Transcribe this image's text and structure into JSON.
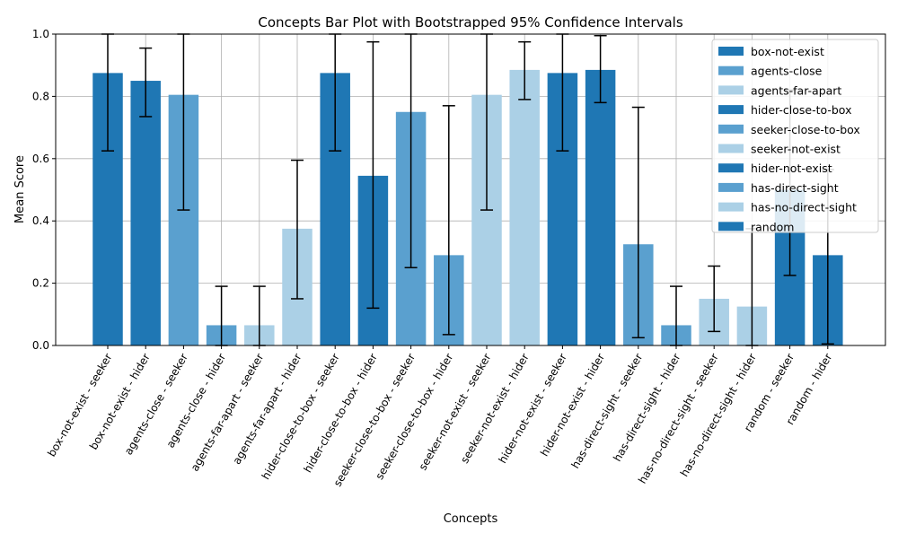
{
  "chart_data": {
    "type": "bar",
    "title": "Concepts Bar Plot with Bootstrapped 95% Confidence Intervals",
    "xlabel": "Concepts",
    "ylabel": "Mean Score",
    "ylim": [
      0,
      1.0
    ],
    "yticks": [
      "0.0",
      "0.2",
      "0.4",
      "0.6",
      "0.8",
      "1.0"
    ],
    "grid": true,
    "legend_position": "top-right",
    "colors": [
      "#1f77b4",
      "#5aa0cf",
      "#abd0e6"
    ],
    "categories": [
      "box-not-exist - seeker",
      "box-not-exist - hider",
      "agents-close - seeker",
      "agents-close - hider",
      "agents-far-apart - seeker",
      "agents-far-apart - hider",
      "hider-close-to-box - seeker",
      "hider-close-to-box - hider",
      "seeker-close-to-box - seeker",
      "seeker-close-to-box - hider",
      "seeker-not-exist - seeker",
      "seeker-not-exist - hider",
      "hider-not-exist - seeker",
      "hider-not-exist - hider",
      "has-direct-sight - seeker",
      "has-direct-sight - hider",
      "has-no-direct-sight - seeker",
      "has-no-direct-sight - hider",
      "random - seeker",
      "random - hider"
    ],
    "values": [
      0.875,
      0.85,
      0.805,
      0.065,
      0.065,
      0.375,
      0.875,
      0.545,
      0.75,
      0.29,
      0.805,
      0.885,
      0.875,
      0.885,
      0.325,
      0.065,
      0.15,
      0.125,
      0.5,
      0.29
    ],
    "ci_low": [
      0.625,
      0.735,
      0.435,
      0.0,
      0.0,
      0.15,
      0.625,
      0.12,
      0.25,
      0.035,
      0.435,
      0.79,
      0.625,
      0.78,
      0.025,
      0.0,
      0.045,
      0.0,
      0.225,
      0.005
    ],
    "ci_high": [
      1.0,
      0.955,
      1.0,
      0.19,
      0.19,
      0.595,
      1.0,
      0.975,
      1.0,
      0.77,
      1.0,
      0.975,
      1.0,
      0.995,
      0.765,
      0.19,
      0.255,
      0.375,
      0.82,
      0.565
    ],
    "color_index": [
      0,
      0,
      1,
      1,
      2,
      2,
      0,
      0,
      1,
      1,
      2,
      2,
      0,
      0,
      1,
      1,
      2,
      2,
      0,
      0
    ],
    "legend": [
      {
        "label": "box-not-exist",
        "color_index": 0
      },
      {
        "label": "agents-close",
        "color_index": 1
      },
      {
        "label": "agents-far-apart",
        "color_index": 2
      },
      {
        "label": "hider-close-to-box",
        "color_index": 0
      },
      {
        "label": "seeker-close-to-box",
        "color_index": 1
      },
      {
        "label": "seeker-not-exist",
        "color_index": 2
      },
      {
        "label": "hider-not-exist",
        "color_index": 0
      },
      {
        "label": "has-direct-sight",
        "color_index": 1
      },
      {
        "label": "has-no-direct-sight",
        "color_index": 2
      },
      {
        "label": "random",
        "color_index": 0
      }
    ]
  }
}
